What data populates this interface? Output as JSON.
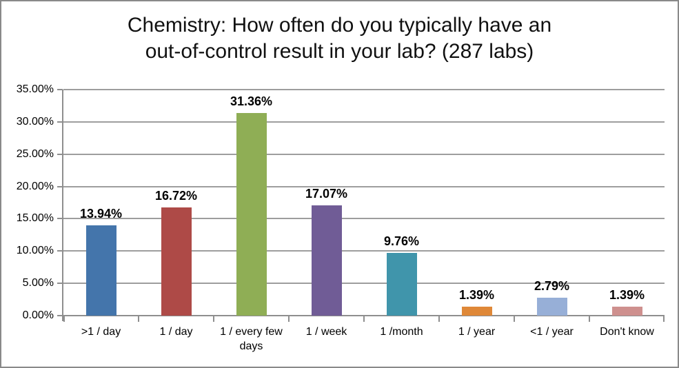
{
  "title_lines": [
    "Chemistry: How often do you typically have an",
    "out-of-control result in your lab? (287 labs)"
  ],
  "chart_data": {
    "type": "bar",
    "title": "Chemistry: How often do you typically have an out-of-control result in your lab? (287 labs)",
    "categories": [
      ">1 / day",
      "1 / day",
      "1 / every few days",
      "1 / week",
      "1 /month",
      "1 / year",
      "<1 / year",
      "Don't know"
    ],
    "values": [
      13.94,
      16.72,
      31.36,
      17.07,
      9.76,
      1.39,
      2.79,
      1.39
    ],
    "data_labels": [
      "13.94%",
      "16.72%",
      "31.36%",
      "17.07%",
      "9.76%",
      "1.39%",
      "2.79%",
      "1.39%"
    ],
    "bar_colors": [
      "#4475AB",
      "#AE4A47",
      "#8FAE55",
      "#705C96",
      "#4095AB",
      "#DF8838",
      "#97AFD7",
      "#CE908E"
    ],
    "xlabel": "",
    "ylabel": "",
    "ylim": [
      0,
      35
    ],
    "ytick_step": 5,
    "ytick_labels": [
      "0.00%",
      "5.00%",
      "10.00%",
      "15.00%",
      "20.00%",
      "25.00%",
      "30.00%",
      "35.00%"
    ],
    "grid": true,
    "legend": false
  },
  "colors": {
    "gridline": "#9D9D9D",
    "axis": "#8E8E8E",
    "border": "#898989",
    "text": "#000000"
  }
}
